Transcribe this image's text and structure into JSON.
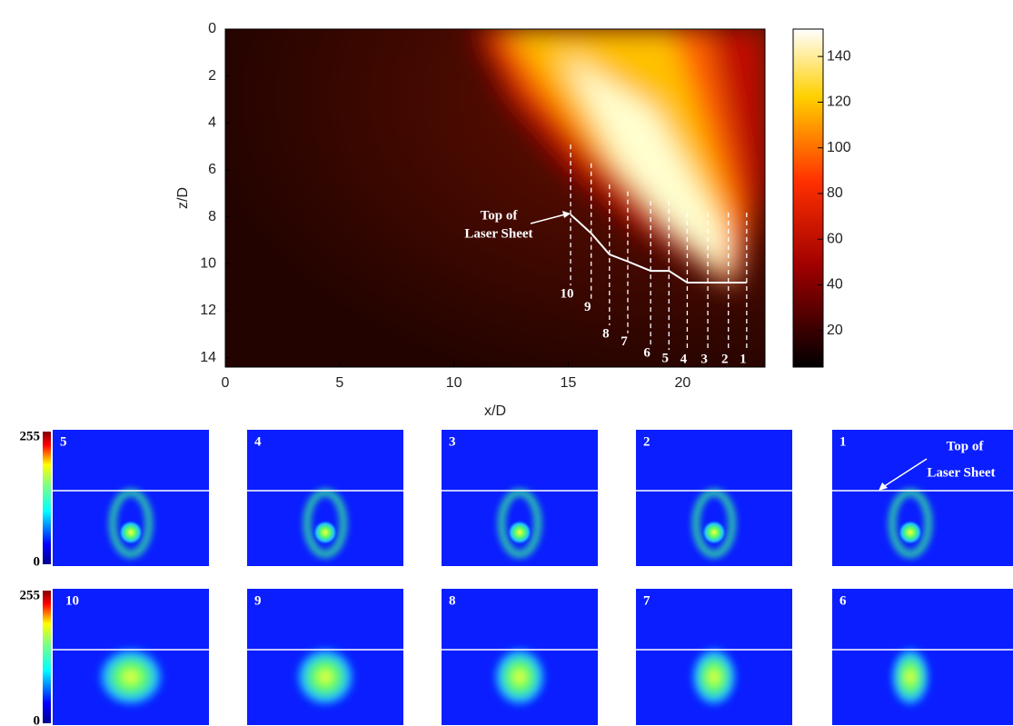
{
  "chart_data": {
    "type": "heatmap",
    "xlabel": "x/D",
    "ylabel": "z/D",
    "xlim": [
      0,
      23.6
    ],
    "ylim": [
      0,
      14.4
    ],
    "y_inverted": true,
    "xticks": [
      0,
      5,
      10,
      15,
      20
    ],
    "yticks": [
      0,
      2,
      4,
      6,
      8,
      10,
      12,
      14
    ],
    "colorbar": {
      "lim": [
        4,
        152
      ],
      "ticks": [
        20,
        40,
        60,
        80,
        100,
        120,
        140
      ]
    },
    "annotation": [
      "Top of",
      "Laser Sheet"
    ],
    "stations": {
      "color": "#ffffff",
      "labels": [
        "1",
        "2",
        "3",
        "4",
        "5",
        "6",
        "7",
        "8",
        "9",
        "10"
      ],
      "x": [
        22.8,
        22.0,
        21.1,
        20.2,
        19.4,
        18.6,
        17.6,
        16.8,
        16.0,
        15.1
      ],
      "z": [
        10.8,
        10.8,
        10.8,
        10.8,
        10.3,
        10.3,
        9.9,
        9.6,
        8.7,
        7.9
      ]
    }
  },
  "panels": {
    "annotation": [
      "Top of",
      "Laser Sheet"
    ],
    "rows": [
      {
        "colorbar_ticks": [
          0,
          255
        ],
        "labels": [
          "5",
          "4",
          "3",
          "2",
          "1"
        ]
      },
      {
        "colorbar_ticks": [
          0,
          255
        ],
        "labels": [
          "10",
          "9",
          "8",
          "7",
          "6"
        ]
      }
    ]
  }
}
